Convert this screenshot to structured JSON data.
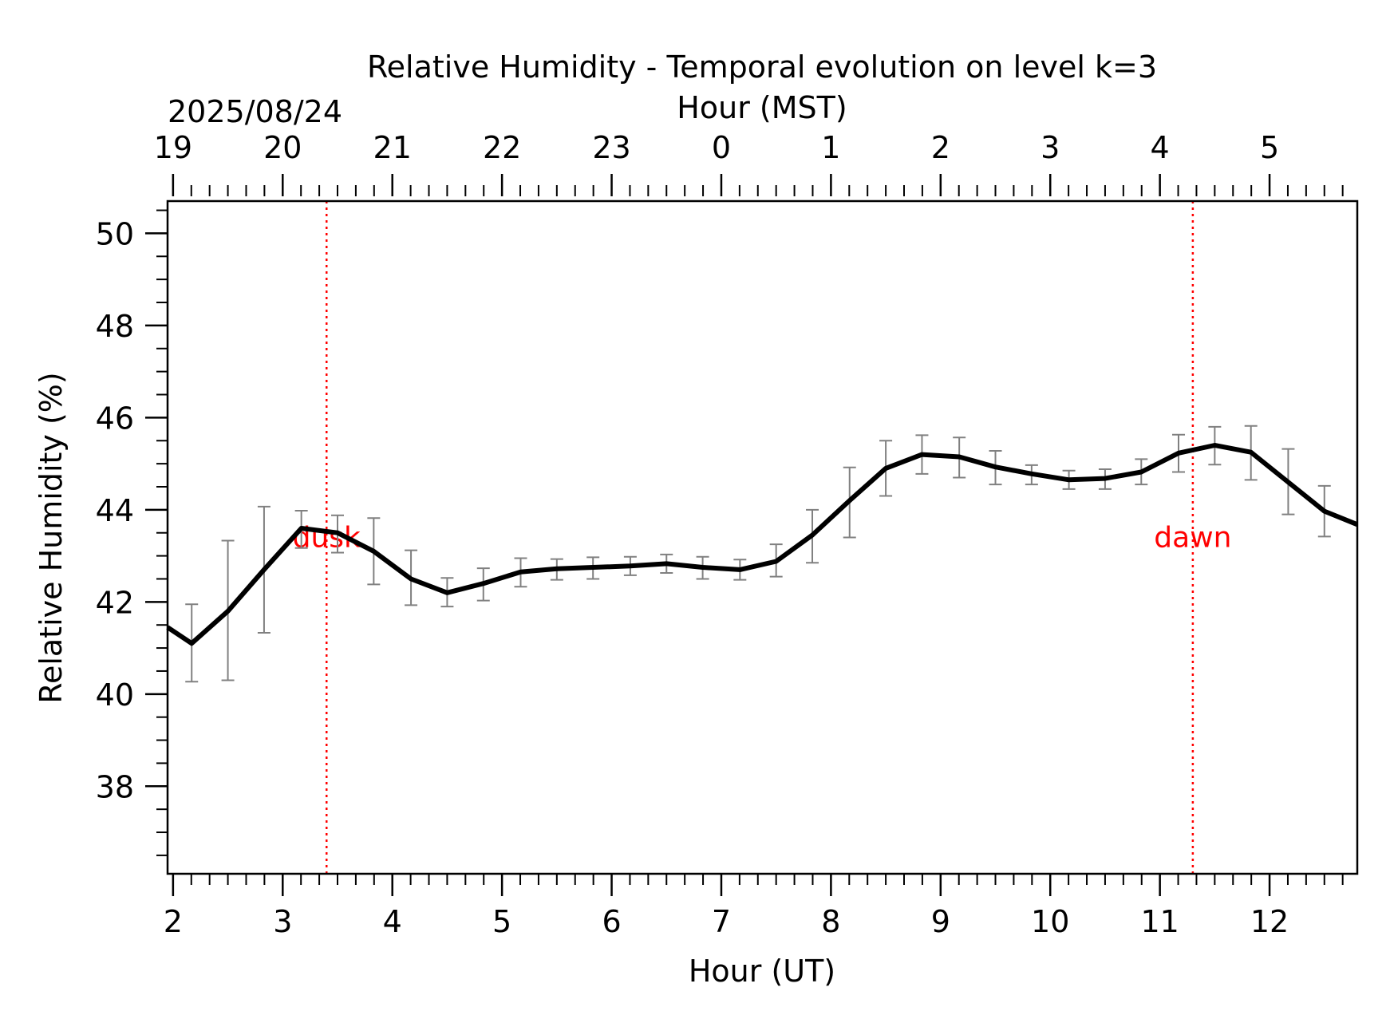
{
  "chart_data": {
    "type": "line",
    "title": "Relative Humidity - Temporal evolution on level k=3",
    "date_label": "2025/08/24",
    "xlabel": "Hour (UT)",
    "x2label": "Hour (MST)",
    "ylabel": "Relative Humidity (%)",
    "xlim": [
      1.95,
      12.8
    ],
    "ylim": [
      36.1,
      50.7
    ],
    "x_ticks": [
      2,
      3,
      4,
      5,
      6,
      7,
      8,
      9,
      10,
      11,
      12
    ],
    "x_tick_labels": [
      "2",
      "3",
      "4",
      "5",
      "6",
      "7",
      "8",
      "9",
      "10",
      "11",
      "12"
    ],
    "x2_tick_labels": [
      "19",
      "20",
      "21",
      "22",
      "23",
      "0",
      "1",
      "2",
      "3",
      "4",
      "5"
    ],
    "y_ticks": [
      38,
      40,
      42,
      44,
      46,
      48,
      50
    ],
    "y_tick_labels": [
      "38",
      "40",
      "42",
      "44",
      "46",
      "48",
      "50"
    ],
    "grid": false,
    "series": [
      {
        "color": "#000000",
        "x": [
          1.95,
          2.17,
          2.5,
          2.83,
          3.17,
          3.5,
          3.83,
          4.17,
          4.5,
          4.83,
          5.17,
          5.5,
          5.83,
          6.17,
          6.5,
          6.83,
          7.17,
          7.5,
          7.83,
          8.17,
          8.5,
          8.83,
          9.17,
          9.5,
          9.83,
          10.17,
          10.5,
          10.83,
          11.17,
          11.5,
          11.83,
          12.17,
          12.5,
          12.8
        ],
        "y": [
          41.45,
          41.1,
          41.8,
          42.7,
          43.6,
          43.5,
          43.1,
          42.5,
          42.2,
          42.4,
          42.65,
          42.72,
          42.75,
          42.78,
          42.83,
          42.75,
          42.7,
          42.88,
          43.45,
          44.2,
          44.9,
          45.2,
          45.15,
          44.93,
          44.78,
          44.65,
          44.68,
          44.82,
          45.23,
          45.4,
          45.25,
          44.6,
          43.97,
          43.68
        ],
        "err_low": [
          null,
          40.27,
          40.3,
          41.33,
          43.17,
          43.07,
          42.38,
          41.93,
          41.9,
          42.03,
          42.33,
          42.48,
          42.5,
          42.58,
          42.63,
          42.5,
          42.48,
          42.55,
          42.85,
          43.4,
          44.3,
          44.78,
          44.7,
          44.55,
          44.55,
          44.45,
          44.45,
          44.55,
          44.82,
          44.98,
          44.65,
          43.9,
          43.42,
          null
        ],
        "err_high": [
          null,
          41.95,
          43.33,
          44.07,
          43.98,
          43.88,
          43.82,
          43.12,
          42.52,
          42.73,
          42.95,
          42.93,
          42.97,
          42.98,
          43.03,
          42.98,
          42.92,
          43.25,
          44.0,
          44.92,
          45.5,
          45.62,
          45.57,
          45.28,
          44.97,
          44.85,
          44.88,
          45.1,
          45.63,
          45.8,
          45.82,
          45.32,
          44.52,
          null
        ],
        "err_color": "#808080"
      }
    ],
    "annotations": [
      {
        "text": "dusk",
        "x": 3.4,
        "color": "#ff0000"
      },
      {
        "text": "dawn",
        "x": 11.3,
        "color": "#ff0000"
      }
    ]
  }
}
